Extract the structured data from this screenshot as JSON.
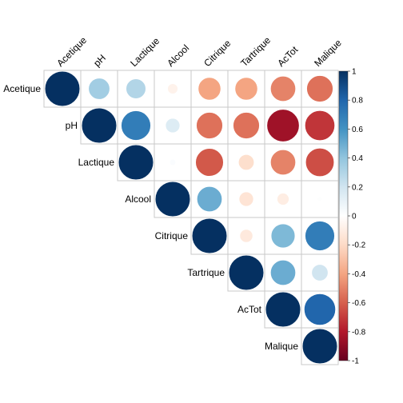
{
  "chart_data": {
    "type": "heatmap",
    "variant": "correlation-matrix-upper-circles",
    "variables": [
      "Acetique",
      "pH",
      "Lactique",
      "Alcool",
      "Citrique",
      "Tartrique",
      "AcTot",
      "Malique"
    ],
    "matrix": [
      [
        1.0,
        0.35,
        0.3,
        -0.07,
        -0.4,
        -0.4,
        -0.5,
        -0.55
      ],
      [
        0.35,
        1.0,
        0.7,
        0.15,
        -0.55,
        -0.55,
        -0.85,
        -0.72
      ],
      [
        0.3,
        0.7,
        1.0,
        0.02,
        -0.62,
        -0.18,
        -0.5,
        -0.65
      ],
      [
        -0.07,
        0.15,
        0.02,
        1.0,
        0.5,
        -0.15,
        -0.1,
        0.01
      ],
      [
        -0.4,
        -0.55,
        -0.62,
        0.5,
        1.0,
        -0.12,
        0.45,
        0.7
      ],
      [
        -0.4,
        -0.55,
        -0.18,
        -0.15,
        -0.12,
        1.0,
        0.5,
        0.2
      ],
      [
        -0.5,
        -0.85,
        -0.5,
        -0.1,
        0.45,
        0.5,
        1.0,
        0.8
      ],
      [
        -0.55,
        -0.72,
        -0.65,
        0.01,
        0.7,
        0.2,
        0.8,
        1.0
      ]
    ],
    "display": "upper triangle including diagonal",
    "color_scale": {
      "min": -1,
      "max": 1,
      "negative_color": "#67001F",
      "zero_color": "#FFFFFF",
      "positive_color": "#053061",
      "ticks": [
        "-1",
        "-0.8",
        "-0.6",
        "-0.4",
        "-0.2",
        "0",
        "0.2",
        "0.4",
        "0.6",
        "0.8",
        "1"
      ]
    },
    "legend_placement": "right",
    "grid": true
  }
}
